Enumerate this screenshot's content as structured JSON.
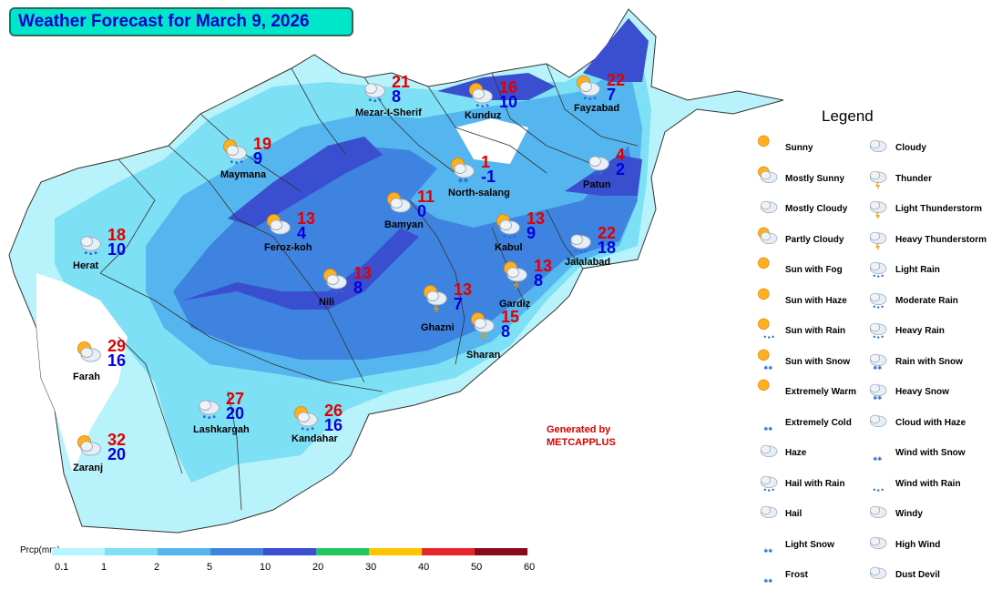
{
  "title": "Weather Forecast for March 9, 2026",
  "legend_title": "Legend",
  "generated": [
    "Generated by",
    "METCAPPLUS"
  ],
  "scale": {
    "label": "Prcp(mm)",
    "ticks": [
      "0.1",
      "1",
      "2",
      "5",
      "10",
      "20",
      "30",
      "40",
      "50",
      "60"
    ],
    "colors": [
      "#b4f5ff",
      "#7ee0f5",
      "#55b5ee",
      "#3f83e0",
      "#3a4fd0",
      "#22c55e",
      "#ffc400",
      "#e8252c",
      "#8b0a1a"
    ]
  },
  "stations": [
    {
      "name": "Mezar-I-Sherif",
      "max": "21",
      "min": "8",
      "icon": "cloud-rain"
    },
    {
      "name": "Kunduz",
      "max": "16",
      "min": "10",
      "icon": "sun-cloud-rain"
    },
    {
      "name": "Fayzabad",
      "max": "22",
      "min": "7",
      "icon": "sun-cloud-rain"
    },
    {
      "name": "Maymana",
      "max": "19",
      "min": "9",
      "icon": "sun-cloud-rain"
    },
    {
      "name": "North-salang",
      "max": "1",
      "min": "-1",
      "icon": "sun-cloud-snow"
    },
    {
      "name": "Patun",
      "max": "4",
      "min": "2",
      "icon": "cloud-snow"
    },
    {
      "name": "Bamyan",
      "max": "11",
      "min": "0",
      "icon": "sun-cloud"
    },
    {
      "name": "Feroz-koh",
      "max": "13",
      "min": "4",
      "icon": "sun-cloud"
    },
    {
      "name": "Kabul",
      "max": "13",
      "min": "9",
      "icon": "sun-cloud-rain"
    },
    {
      "name": "Herat",
      "max": "18",
      "min": "10",
      "icon": "cloud-rain"
    },
    {
      "name": "Jalalabad",
      "max": "22",
      "min": "18",
      "icon": "cloud-rain"
    },
    {
      "name": "Nili",
      "max": "13",
      "min": "8",
      "icon": "sun-cloud-rain"
    },
    {
      "name": "Gardiz",
      "max": "13",
      "min": "8",
      "icon": "sun-cloud-thunder"
    },
    {
      "name": "Ghazni",
      "max": "13",
      "min": "7",
      "icon": "sun-cloud-thunder"
    },
    {
      "name": "Sharan",
      "max": "15",
      "min": "8",
      "icon": "sun-cloud-thunder"
    },
    {
      "name": "Farah",
      "max": "29",
      "min": "16",
      "icon": "sun-cloud"
    },
    {
      "name": "Lashkargah",
      "max": "27",
      "min": "20",
      "icon": "cloud-rain"
    },
    {
      "name": "Kandahar",
      "max": "26",
      "min": "16",
      "icon": "sun-cloud-rain"
    },
    {
      "name": "Zaranj",
      "max": "32",
      "min": "20",
      "icon": "sun-cloud"
    }
  ],
  "legend": {
    "left": [
      "Sunny",
      "Mostly Sunny",
      "Mostly Cloudy",
      "Partly Cloudy",
      "Sun with Fog",
      "Sun with Haze",
      "Sun with Rain",
      "Sun with Snow",
      "Extremely Warm",
      "Extremely Cold",
      "Haze",
      "Hail with Rain",
      "Hail",
      "Light Snow",
      "Frost"
    ],
    "right": [
      "Cloudy",
      "Thunder",
      "Light Thunderstorm",
      "Heavy Thunderstorm",
      "Light Rain",
      "Moderate Rain",
      "Heavy Rain",
      "Rain with Snow",
      "Heavy Snow",
      "Cloud with Haze",
      "Wind with Snow",
      "Wind with Rain",
      "Windy",
      "High Wind",
      "Dust Devil"
    ]
  }
}
